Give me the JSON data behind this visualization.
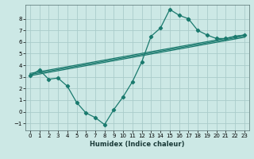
{
  "xlabel": "Humidex (Indice chaleur)",
  "background_color": "#cce8e5",
  "grid_color": "#aaccca",
  "line_color": "#1a7a6e",
  "xlim": [
    -0.5,
    23.5
  ],
  "ylim": [
    -1.6,
    9.2
  ],
  "xticks": [
    0,
    1,
    2,
    3,
    4,
    5,
    6,
    7,
    8,
    9,
    10,
    11,
    12,
    13,
    14,
    15,
    16,
    17,
    18,
    19,
    20,
    21,
    22,
    23
  ],
  "yticks": [
    -1,
    0,
    1,
    2,
    3,
    4,
    5,
    6,
    7,
    8
  ],
  "main_x": [
    0,
    1,
    2,
    3,
    4,
    5,
    6,
    7,
    8,
    9,
    10,
    11,
    12,
    13,
    14,
    15,
    16,
    17
  ],
  "main_y": [
    3.1,
    3.6,
    2.8,
    2.9,
    2.2,
    0.8,
    -0.1,
    -0.5,
    -1.1,
    0.2,
    1.3,
    2.6,
    4.3,
    6.5,
    7.2,
    8.8,
    8.3,
    8.0
  ],
  "right_x": [
    17,
    18,
    19,
    20,
    21,
    22,
    23
  ],
  "right_y": [
    8.0,
    7.0,
    6.6,
    6.3,
    6.3,
    6.5,
    6.6
  ],
  "trend_lines": [
    {
      "x0": 0,
      "y0": 3.1,
      "x1": 23,
      "y1": 6.4
    },
    {
      "x0": 0,
      "y0": 3.2,
      "x1": 23,
      "y1": 6.5
    },
    {
      "x0": 0,
      "y0": 3.3,
      "x1": 23,
      "y1": 6.6
    }
  ]
}
